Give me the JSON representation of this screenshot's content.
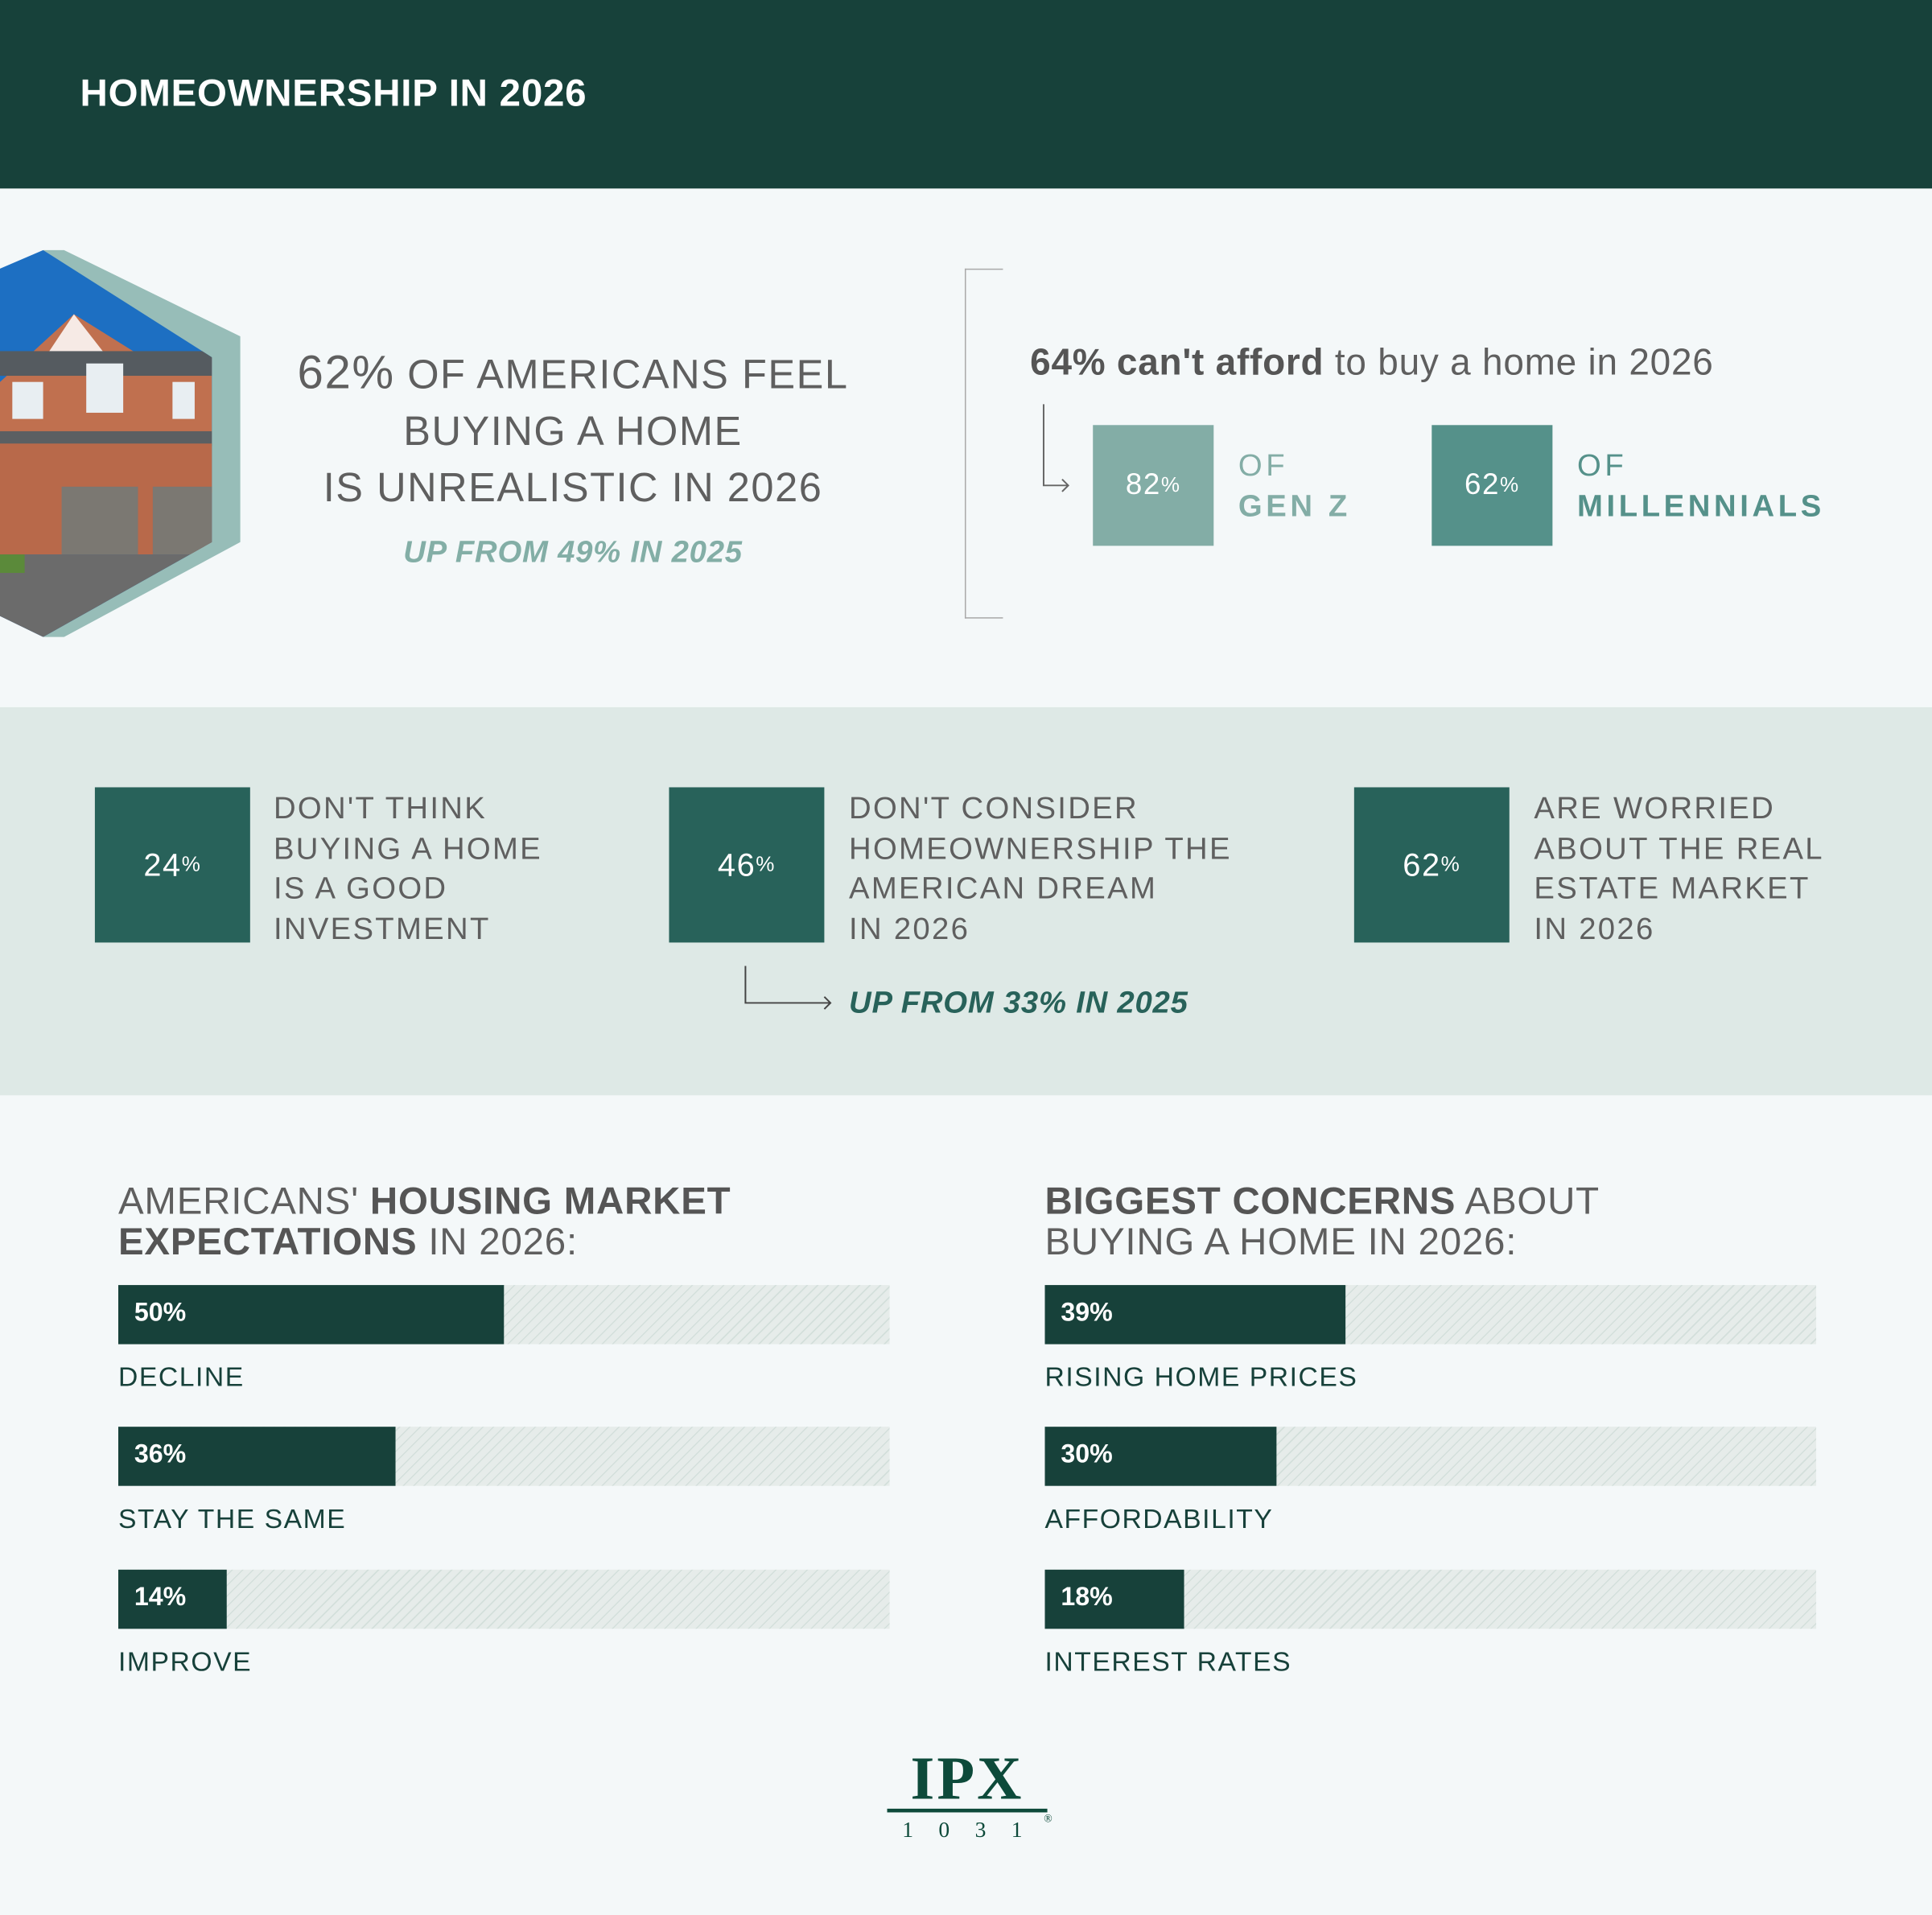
{
  "header": {
    "title": "HOMEOWNERSHIP IN 2026"
  },
  "colors": {
    "dark_green": "#17413a",
    "teal": "#28625a",
    "light_teal": "#83ada6",
    "mid_teal": "#55918a",
    "band": "#dee9e6",
    "background": "#f4f8f9"
  },
  "hero": {
    "image": "house-photo",
    "pct": "62%",
    "line1": " OF AMERICANS FEEL",
    "line2": "BUYING A HOME",
    "line3": "IS UNREALISTIC IN 2026",
    "sub": "UP FROM 49% IN 2025"
  },
  "afford": {
    "bold": "64% can't afford",
    "rest": " to buy a home in 2026",
    "groups": [
      {
        "num": "82",
        "pct": "%",
        "of": "OF",
        "name": "GEN Z"
      },
      {
        "num": "62",
        "pct": "%",
        "of": "OF",
        "name": "MILLENNIALS"
      }
    ]
  },
  "stats": [
    {
      "num": "24",
      "pct": "%",
      "lines": [
        "DON'T THINK",
        "BUYING A HOME",
        "IS A GOOD",
        "INVESTMENT"
      ]
    },
    {
      "num": "46",
      "pct": "%",
      "lines": [
        "DON'T CONSIDER",
        "HOMEOWNERSHIP THE",
        "AMERICAN DREAM",
        "IN 2026"
      ]
    },
    {
      "num": "62",
      "pct": "%",
      "lines": [
        "ARE WORRIED",
        "ABOUT THE REAL",
        "ESTATE MARKET",
        "IN 2026"
      ]
    }
  ],
  "stats_sub": "UP FROM 33% IN 2025",
  "chart_data": [
    {
      "type": "bar",
      "title_normal1": "AMERICANS' ",
      "title_bold1": "HOUSING MARKET",
      "title_bold2": "EXPECTATIONS",
      "title_normal2": " IN 2026:",
      "categories": [
        "DECLINE",
        "STAY THE SAME",
        "IMPROVE"
      ],
      "values": [
        50,
        36,
        14
      ],
      "labels": [
        "50%",
        "36%",
        "14%"
      ],
      "xlim": [
        0,
        100
      ]
    },
    {
      "type": "bar",
      "title_bold1": "BIGGEST CONCERNS",
      "title_normal1": " ABOUT",
      "title_normal2": "BUYING A HOME IN 2026:",
      "categories": [
        "RISING HOME PRICES",
        "AFFORDABILITY",
        "INTEREST RATES"
      ],
      "values": [
        39,
        30,
        18
      ],
      "labels": [
        "39%",
        "30%",
        "18%"
      ],
      "xlim": [
        0,
        100
      ]
    }
  ],
  "logo": {
    "text": "IPX",
    "sub": "1 0 3 1",
    "reg": "®"
  }
}
